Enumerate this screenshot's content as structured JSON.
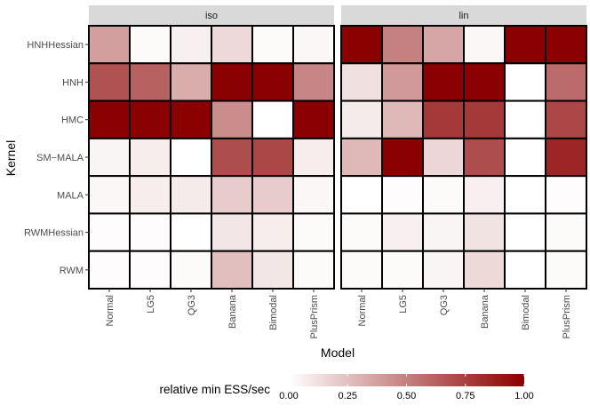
{
  "chart_data": {
    "type": "heatmap",
    "xlabel": "Model",
    "ylabel": "Kernel",
    "x_categories": [
      "Normal",
      "LG5",
      "QG3",
      "Banana",
      "Bimodal",
      "PlusPrism"
    ],
    "y_categories": [
      "HNHHessian",
      "HNH",
      "HMC",
      "SM−MALA",
      "MALA",
      "RWMHessian",
      "RWM"
    ],
    "panels": [
      {
        "name": "iso",
        "values": [
          [
            0.38,
            0.02,
            0.06,
            0.15,
            0.02,
            0.03
          ],
          [
            0.68,
            0.62,
            0.32,
            1.0,
            1.0,
            0.48
          ],
          [
            1.0,
            1.0,
            1.0,
            0.45,
            0.0,
            1.0
          ],
          [
            0.04,
            0.07,
            0.0,
            0.7,
            0.72,
            0.07
          ],
          [
            0.03,
            0.07,
            0.08,
            0.2,
            0.2,
            0.03
          ],
          [
            0.01,
            0.01,
            0.0,
            0.1,
            0.07,
            0.02
          ],
          [
            0.01,
            0.01,
            0.02,
            0.25,
            0.1,
            0.02
          ]
        ]
      },
      {
        "name": "lin",
        "values": [
          [
            1.0,
            0.5,
            0.35,
            0.03,
            1.0,
            1.0
          ],
          [
            0.12,
            0.4,
            1.0,
            1.0,
            0.0,
            0.58
          ],
          [
            0.08,
            0.28,
            0.78,
            0.78,
            0.0,
            0.72
          ],
          [
            0.28,
            1.0,
            0.16,
            0.7,
            0.0,
            0.85
          ],
          [
            0.0,
            0.01,
            0.02,
            0.06,
            0.0,
            0.01
          ],
          [
            0.02,
            0.06,
            0.04,
            0.11,
            0.0,
            0.02
          ],
          [
            0.02,
            0.02,
            0.04,
            0.15,
            0.0,
            0.02
          ]
        ]
      }
    ],
    "color_scale": {
      "low": "#ffffff",
      "high": "#8b0000",
      "limits": [
        0,
        1
      ]
    },
    "legend": {
      "title": "relative min ESS/sec",
      "position": "bottom",
      "breaks": [
        "0.00",
        "0.25",
        "0.50",
        "0.75",
        "1.00"
      ]
    },
    "strip_color": "#d9d9d9",
    "panel_background": "#ebebeb"
  }
}
